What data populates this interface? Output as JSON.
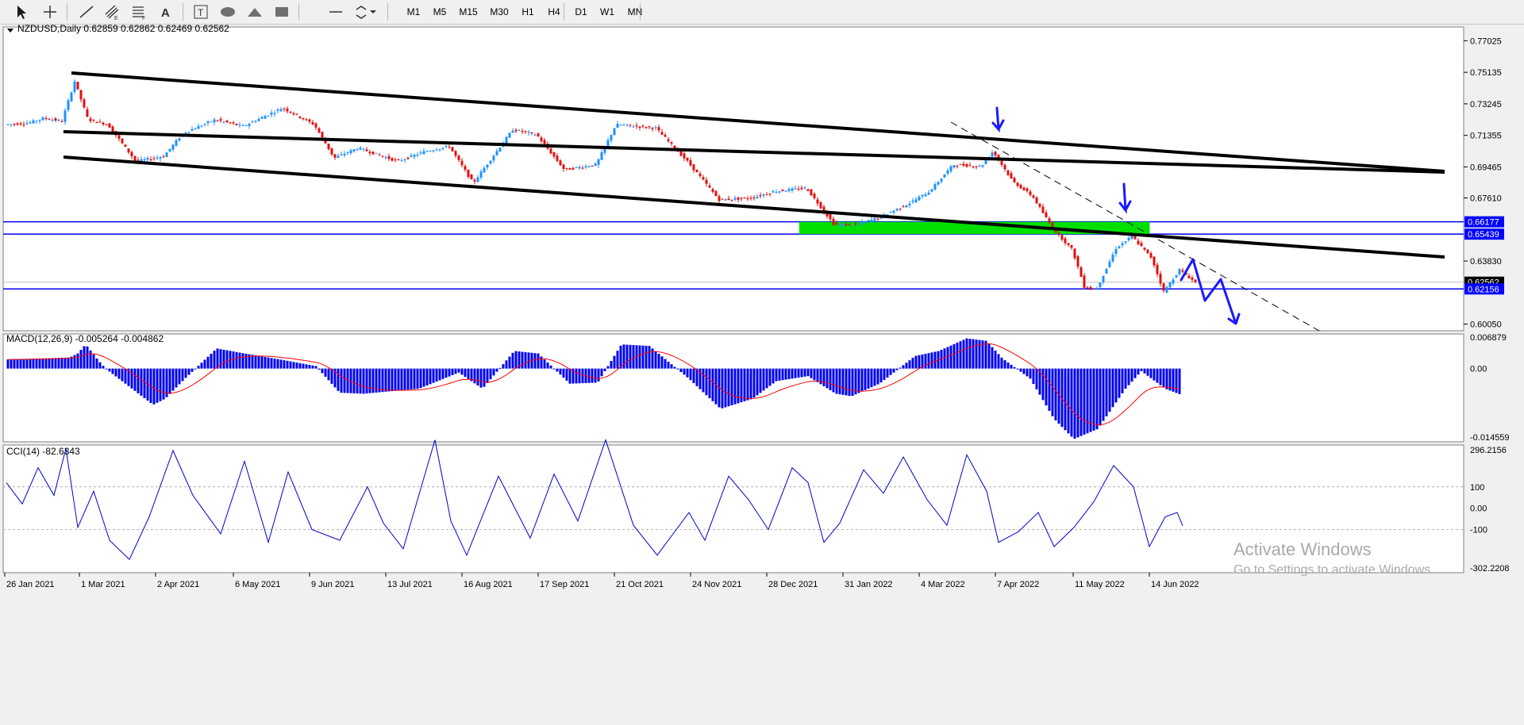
{
  "toolbar": {
    "tools": [
      {
        "icon": "cursor-arrow-icon"
      },
      {
        "icon": "crosshair-icon"
      },
      {
        "icon": "trend-line-icon"
      },
      {
        "icon": "equidistant-channel-icon"
      },
      {
        "icon": "fibonacci-icon"
      },
      {
        "icon": "text-icon"
      },
      {
        "icon": "text-label-icon"
      },
      {
        "icon": "ellipse-icon"
      },
      {
        "icon": "triangle-icon"
      },
      {
        "icon": "rectangle-icon"
      },
      {
        "icon": "horizontal-line-icon"
      },
      {
        "icon": "arrows-menu-icon"
      }
    ],
    "timeframes": [
      "M1",
      "M5",
      "M15",
      "M30",
      "H1",
      "H4",
      "D1",
      "W1",
      "MN"
    ],
    "active_timeframe": "D1"
  },
  "main": {
    "header": "NZDUSD,Daily  0.62859 0.62862 0.62469 0.62562",
    "ticks": [
      "0.77025",
      "0.75135",
      "0.73245",
      "0.71355",
      "0.69465",
      "0.67610",
      "0.63830",
      "0.60050"
    ],
    "level_labels": [
      {
        "text": "0.66177",
        "bg": "#0000ff",
        "value": 0.66177
      },
      {
        "text": "0.65439",
        "bg": "#0000ff",
        "value": 0.65439
      },
      {
        "text": "0.62562",
        "bg": "#000000",
        "value": 0.62562
      },
      {
        "text": "0.62156",
        "bg": "#0000ff",
        "value": 0.62156
      }
    ],
    "ylim": [
      0.5965,
      0.7785
    ],
    "support_resistance_levels": [
      0.66177,
      0.65439,
      0.62156
    ],
    "last_price": 0.62562,
    "zone": {
      "x_from": 0.545,
      "x_to": 0.785,
      "top": 0.66177,
      "bottom": 0.65439,
      "color": "#00e000"
    }
  },
  "macd": {
    "header": "MACD(12,26,9) -0.005264 -0.004862",
    "ticks": [
      "0.006879",
      "0.00",
      "-0.014559"
    ],
    "ylim": [
      -0.01456,
      0.00688
    ]
  },
  "cci": {
    "header": "CCI(14) -82.6343",
    "ticks": [
      "296.2156",
      "100",
      "0.00",
      "-100",
      "-302.2208"
    ],
    "ylim": [
      -302.2,
      296.2
    ]
  },
  "time_axis": [
    "26 Jan 2021",
    "1 Mar 2021",
    "2 Apr 2021",
    "6 May 2021",
    "9 Jun 2021",
    "13 Jul 2021",
    "16 Aug 2021",
    "17 Sep 2021",
    "21 Oct 2021",
    "24 Nov 2021",
    "28 Dec 2021",
    "31 Jan 2022",
    "4 Mar 2022",
    "7 Apr 2022",
    "11 May 2022",
    "14 Jun 2022"
  ],
  "watermark": {
    "line1": "Activate Windows",
    "line2": "Go to Settings to activate Windows."
  },
  "colors": {
    "bull": "#1e90ff",
    "bear": "#e01010",
    "histogram": "#0000ee",
    "signal": "#ff0000",
    "cci": "#0000cc",
    "level": "#0000ff",
    "channel": "#000000"
  },
  "chart_data": {
    "type": "line",
    "title": "NZDUSD,Daily",
    "x": [
      "26 Jan 2021",
      "1 Mar 2021",
      "2 Apr 2021",
      "6 May 2021",
      "9 Jun 2021",
      "13 Jul 2021",
      "16 Aug 2021",
      "17 Sep 2021",
      "21 Oct 2021",
      "24 Nov 2021",
      "28 Dec 2021",
      "31 Jan 2022",
      "4 Mar 2022",
      "7 Apr 2022",
      "11 May 2022",
      "14 Jun 2022"
    ],
    "series": [
      {
        "name": "NZDUSD",
        "values": [
          0.72,
          0.719,
          0.701,
          0.717,
          0.718,
          0.7,
          0.689,
          0.705,
          0.718,
          0.678,
          0.681,
          0.658,
          0.678,
          0.685,
          0.623,
          0.6256
        ]
      }
    ],
    "ylim": [
      0.5965,
      0.7785
    ],
    "grid": false
  }
}
